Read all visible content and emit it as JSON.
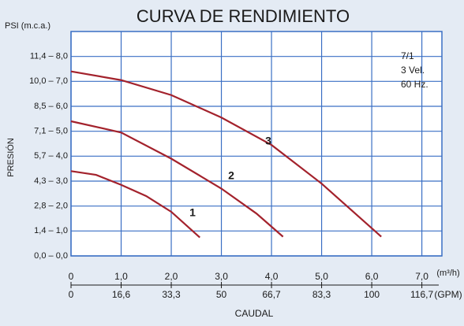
{
  "chart_data": {
    "type": "line",
    "title": "CURVA DE RENDIMIENTO",
    "y_label_top": "PSI (m.c.a.)",
    "y_label": "PRESIÓN",
    "x_label": "CAUDAL",
    "x_unit": "(m³/h)",
    "x2_unit": "(GPM)",
    "annotation": [
      "7/1",
      "3 Vel.",
      "60 Hz."
    ],
    "xlim": [
      0,
      7.4
    ],
    "ylim": [
      0,
      9
    ],
    "grid": true,
    "xticks": [
      0,
      {
        "value": 1,
        "label": "1,0"
      },
      {
        "value": 2,
        "label": "2,0"
      },
      {
        "value": 3,
        "label": "3,0"
      },
      {
        "value": 4,
        "label": "4,0"
      },
      {
        "value": 5,
        "label": "5,0"
      },
      {
        "value": 6,
        "label": "6,0"
      },
      {
        "value": 7,
        "label": "7,0"
      }
    ],
    "x2ticklabels": [
      "0",
      "16,6",
      "33,3",
      "50",
      "66,7",
      "83,3",
      "100",
      "116,7"
    ],
    "yticks": [
      {
        "value": 0,
        "label": "0,0 – 0,0"
      },
      {
        "value": 1,
        "label": "1,4 – 1,0"
      },
      {
        "value": 2,
        "label": "2,8 – 2,0"
      },
      {
        "value": 3,
        "label": "4,3 – 3,0"
      },
      {
        "value": 4,
        "label": "5,7 – 4,0"
      },
      {
        "value": 5,
        "label": "7,1 – 5,0"
      },
      {
        "value": 6,
        "label": "8,5 – 6,0"
      },
      {
        "value": 7,
        "label": "10,0 – 7,0"
      },
      {
        "value": 8,
        "label": "11,4 – 8,0"
      }
    ],
    "series": [
      {
        "name": "1",
        "color": "#a3222c",
        "x": [
          0,
          0.5,
          1,
          1.5,
          2,
          2.57
        ],
        "values": [
          3.4,
          3.25,
          2.85,
          2.4,
          1.77,
          0.74
        ]
      },
      {
        "name": "2",
        "color": "#a3222c",
        "x": [
          0,
          1,
          2,
          3,
          3.7,
          4.23
        ],
        "values": [
          5.4,
          4.95,
          3.9,
          2.7,
          1.7,
          0.77
        ]
      },
      {
        "name": "3",
        "color": "#a3222c",
        "x": [
          0,
          1,
          2,
          3,
          4,
          5,
          6.19
        ],
        "values": [
          7.4,
          7.05,
          6.45,
          5.55,
          4.45,
          2.9,
          0.77
        ]
      }
    ]
  }
}
